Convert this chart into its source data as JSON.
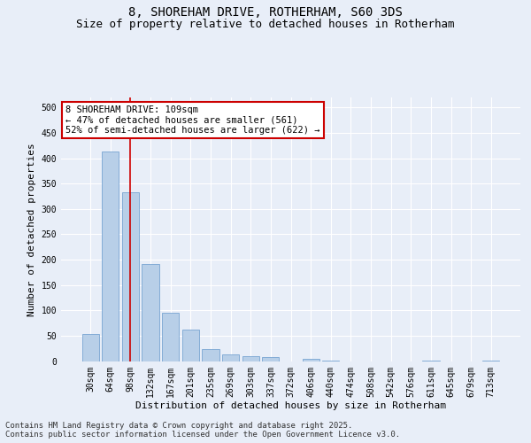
{
  "title_line1": "8, SHOREHAM DRIVE, ROTHERHAM, S60 3DS",
  "title_line2": "Size of property relative to detached houses in Rotherham",
  "xlabel": "Distribution of detached houses by size in Rotherham",
  "ylabel": "Number of detached properties",
  "bar_color": "#b8cfe8",
  "bar_edge_color": "#6699cc",
  "vline_color": "#cc0000",
  "vline_x": 2,
  "annotation_text": "8 SHOREHAM DRIVE: 109sqm\n← 47% of detached houses are smaller (561)\n52% of semi-detached houses are larger (622) →",
  "annotation_box_color": "#cc0000",
  "categories": [
    "30sqm",
    "64sqm",
    "98sqm",
    "132sqm",
    "167sqm",
    "201sqm",
    "235sqm",
    "269sqm",
    "303sqm",
    "337sqm",
    "372sqm",
    "406sqm",
    "440sqm",
    "474sqm",
    "508sqm",
    "542sqm",
    "576sqm",
    "611sqm",
    "645sqm",
    "679sqm",
    "713sqm"
  ],
  "values": [
    54,
    413,
    333,
    192,
    96,
    62,
    23,
    13,
    9,
    8,
    0,
    5,
    1,
    0,
    0,
    0,
    0,
    1,
    0,
    0,
    1
  ],
  "ylim": [
    0,
    520
  ],
  "yticks": [
    0,
    50,
    100,
    150,
    200,
    250,
    300,
    350,
    400,
    450,
    500
  ],
  "background_color": "#e8eef8",
  "grid_color": "#ffffff",
  "footer": "Contains HM Land Registry data © Crown copyright and database right 2025.\nContains public sector information licensed under the Open Government Licence v3.0.",
  "title_fontsize": 10,
  "subtitle_fontsize": 9,
  "xlabel_fontsize": 8,
  "ylabel_fontsize": 8,
  "tick_fontsize": 7,
  "footer_fontsize": 6.5,
  "annot_fontsize": 7.5
}
